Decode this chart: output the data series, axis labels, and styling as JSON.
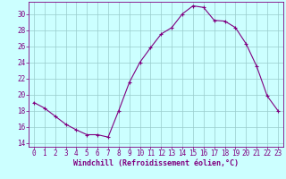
{
  "x": [
    0,
    1,
    2,
    3,
    4,
    5,
    6,
    7,
    8,
    9,
    10,
    11,
    12,
    13,
    14,
    15,
    16,
    17,
    18,
    19,
    20,
    21,
    22,
    23
  ],
  "y": [
    19.0,
    18.3,
    17.3,
    16.3,
    15.6,
    15.0,
    15.0,
    14.7,
    18.0,
    21.5,
    24.0,
    25.8,
    27.5,
    28.3,
    30.0,
    31.0,
    30.8,
    29.2,
    29.1,
    28.3,
    26.3,
    23.5,
    19.8,
    18.0
  ],
  "line_color": "#800080",
  "marker": "+",
  "bg_color": "#ccffff",
  "grid_color": "#99cccc",
  "axis_color": "#800080",
  "tick_color": "#800080",
  "xlabel": "Windchill (Refroidissement éolien,°C)",
  "xlim": [
    -0.5,
    23.5
  ],
  "ylim": [
    13.5,
    31.5
  ],
  "yticks": [
    14,
    16,
    18,
    20,
    22,
    24,
    26,
    28,
    30
  ],
  "xticks": [
    0,
    1,
    2,
    3,
    4,
    5,
    6,
    7,
    8,
    9,
    10,
    11,
    12,
    13,
    14,
    15,
    16,
    17,
    18,
    19,
    20,
    21,
    22,
    23
  ],
  "fontsize_label": 6.0,
  "fontsize_tick": 5.5
}
